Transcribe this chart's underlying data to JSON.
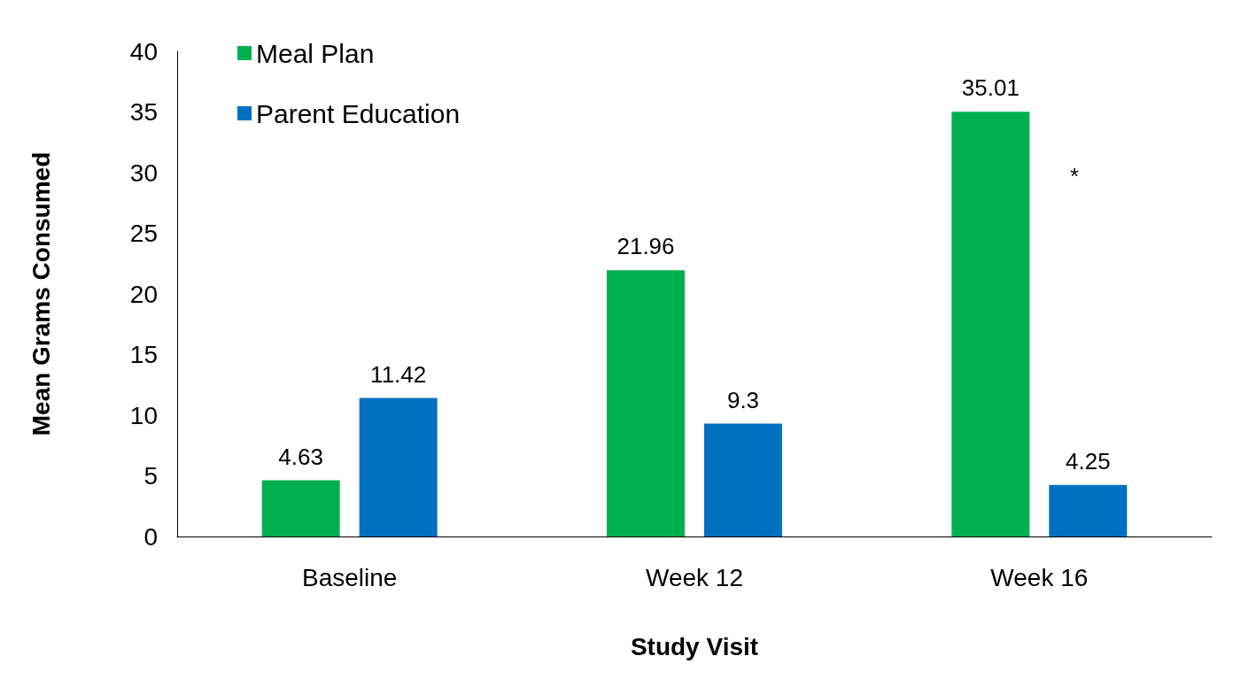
{
  "chart_data": {
    "type": "bar",
    "xlabel": "Study Visit",
    "ylabel": "Mean Grams Consumed",
    "categories": [
      "Baseline",
      "Week 12",
      "Week 16"
    ],
    "series": [
      {
        "name": "Meal Plan",
        "color": "#00b050",
        "values": [
          4.63,
          21.96,
          35.01
        ]
      },
      {
        "name": "Parent Education",
        "color": "#0070c0",
        "values": [
          11.42,
          9.3,
          4.25
        ]
      }
    ],
    "ylim": [
      0,
      40
    ],
    "yticks": [
      0,
      5,
      10,
      15,
      20,
      25,
      30,
      35,
      40
    ],
    "data_labels": true,
    "grid": false,
    "legend": "top left",
    "annotations": [
      "*"
    ]
  }
}
